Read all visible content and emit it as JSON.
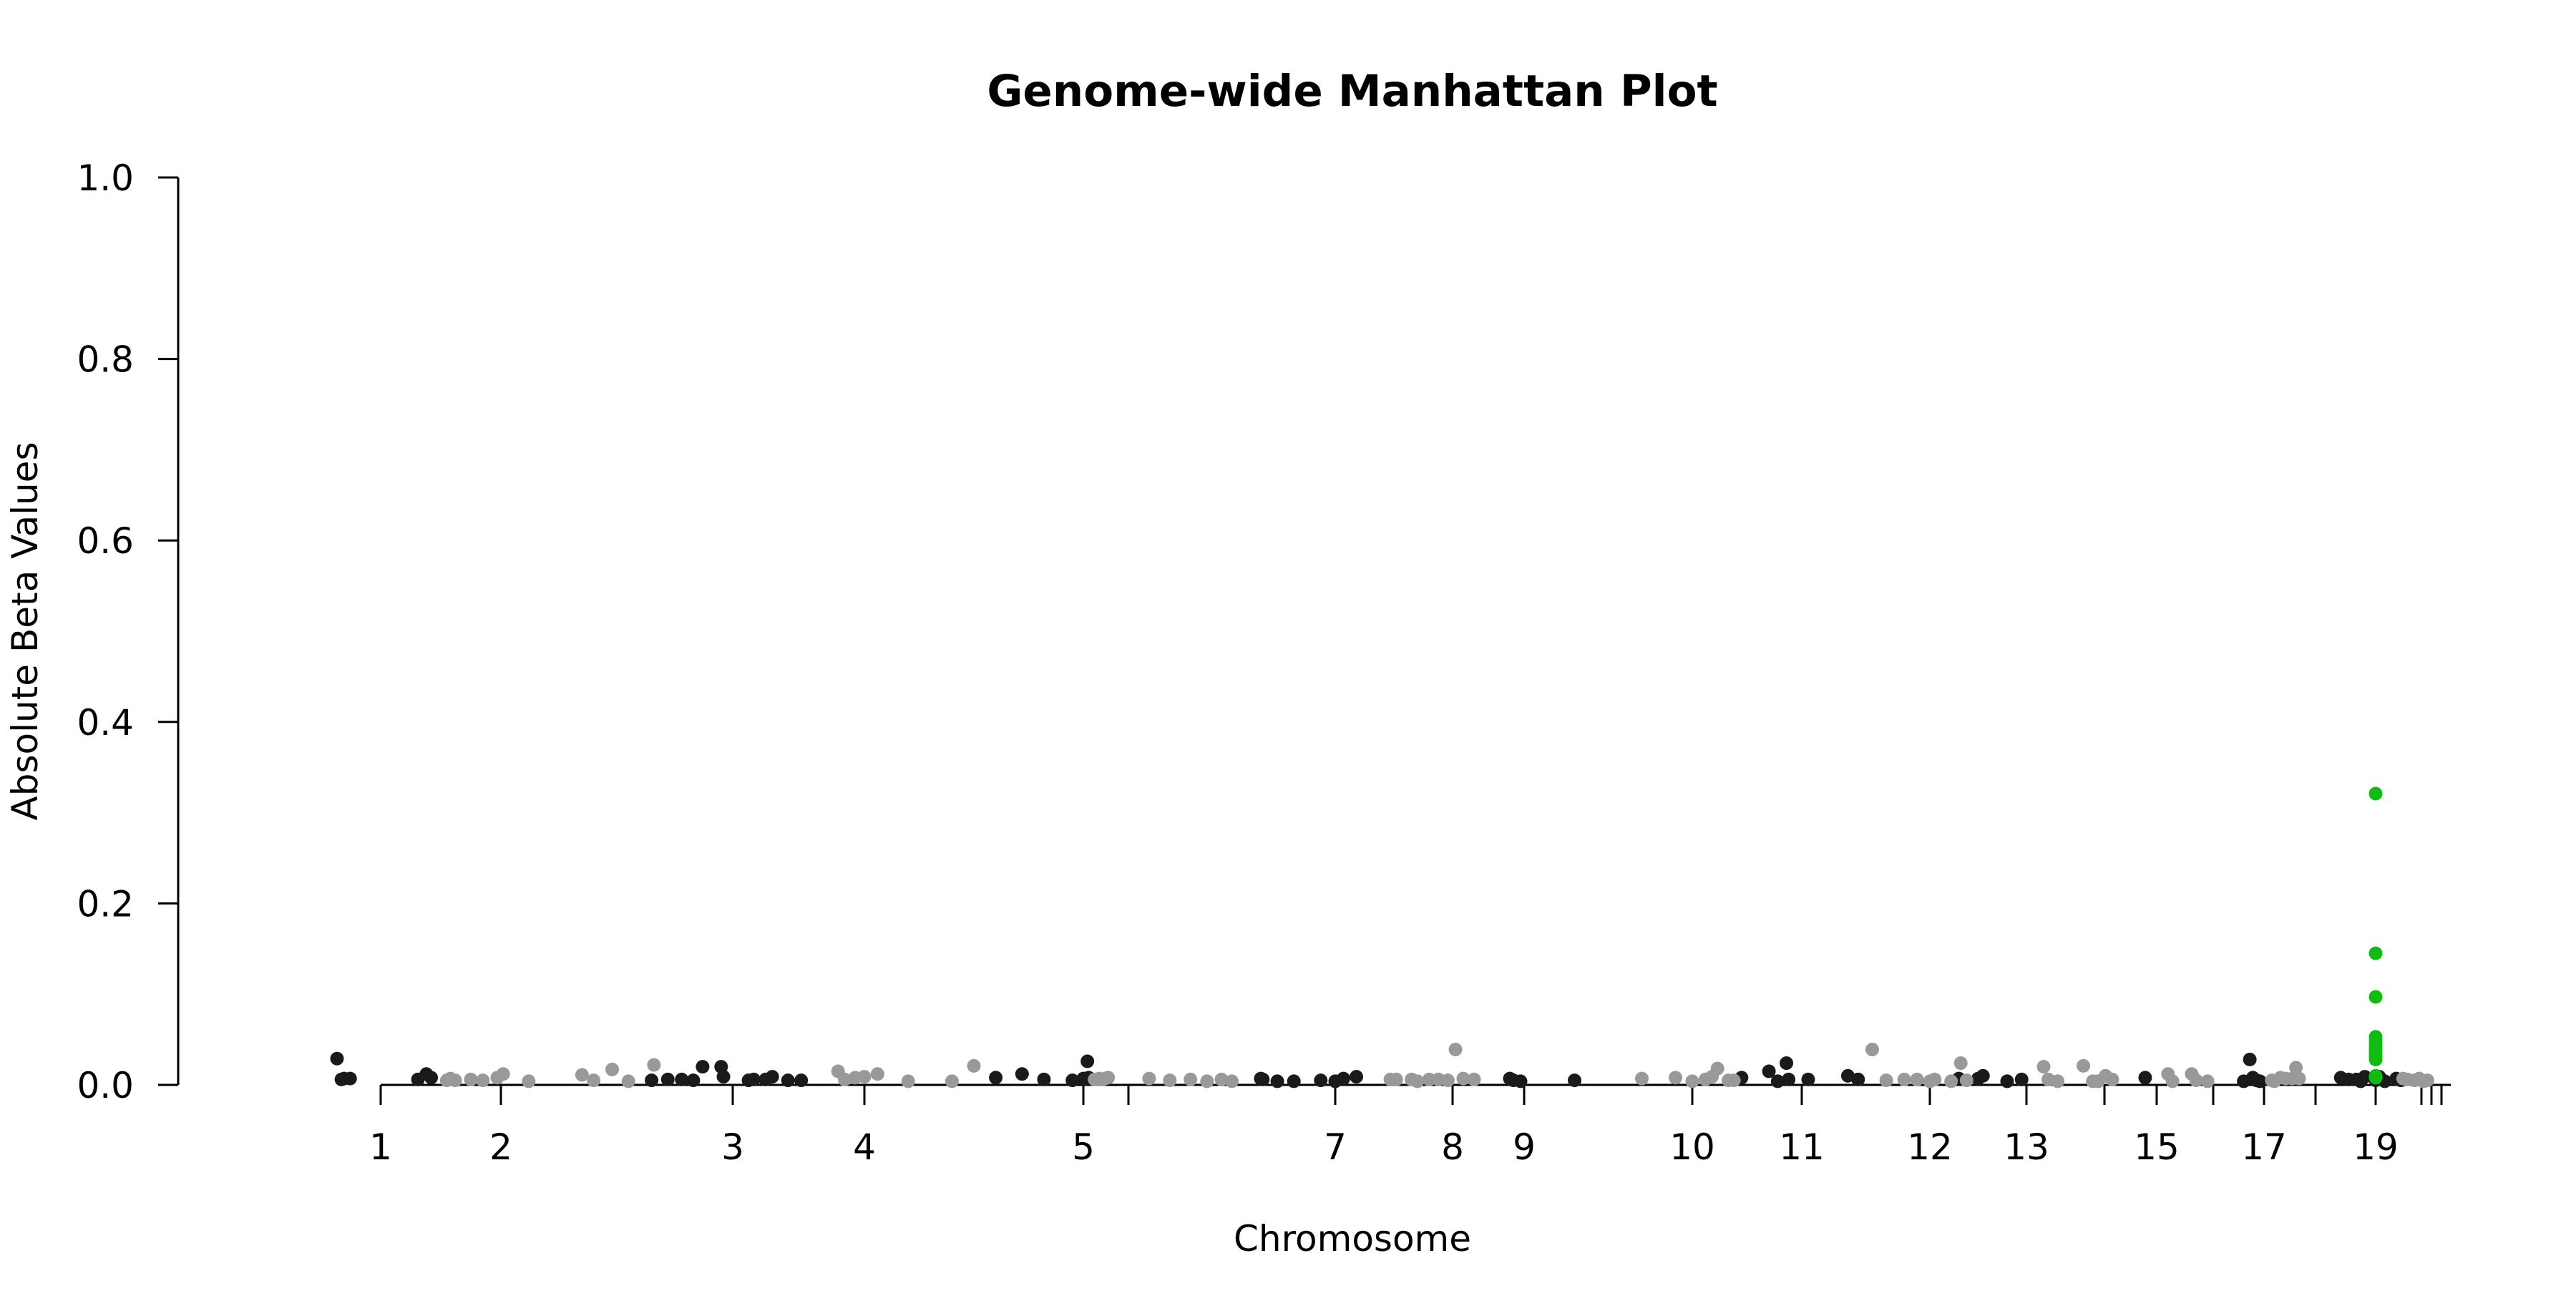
{
  "chart_data": {
    "type": "scatter",
    "title": "Genome-wide Manhattan Plot",
    "xlabel": "Chromosome",
    "ylabel": "Absolute Beta Values",
    "ylim": [
      0,
      1
    ],
    "yticks": [
      "0.0",
      "0.2",
      "0.4",
      "0.6",
      "0.8",
      "1.0"
    ],
    "xticks": [
      {
        "label": "1",
        "chrom": 1
      },
      {
        "label": "2",
        "chrom": 2
      },
      {
        "label": "",
        "chrom": 3,
        "tick_only": true
      },
      {
        "label": "3",
        "chrom": 3
      },
      {
        "label": "4",
        "chrom": 4
      },
      {
        "label": "5",
        "chrom": 5
      },
      {
        "label": "",
        "chrom": 6,
        "tick_only": true
      },
      {
        "label": "7",
        "chrom": 7
      },
      {
        "label": "8",
        "chrom": 8
      },
      {
        "label": "9",
        "chrom": 9
      },
      {
        "label": "10",
        "chrom": 10
      },
      {
        "label": "11",
        "chrom": 11
      },
      {
        "label": "12",
        "chrom": 12
      },
      {
        "label": "13",
        "chrom": 13
      },
      {
        "label": "",
        "chrom": 14,
        "tick_only": true
      },
      {
        "label": "15",
        "chrom": 15
      },
      {
        "label": "",
        "chrom": 16,
        "tick_only": true
      },
      {
        "label": "17",
        "chrom": 17
      },
      {
        "label": "",
        "chrom": 18,
        "tick_only": true
      },
      {
        "label": "19",
        "chrom": 19
      },
      {
        "label": "",
        "chrom": 20,
        "tick_only": true
      },
      {
        "label": "",
        "chrom": 21,
        "tick_only": true
      },
      {
        "label": "",
        "chrom": 22,
        "tick_only": true
      }
    ],
    "grid": false,
    "colors": {
      "odd_chromosome": "#1a1a1a",
      "even_chromosome": "#999999",
      "highlight": "#11bb11"
    },
    "series": [
      {
        "color_key": "odd_chromosome",
        "values": [
          [
            0.5,
            0.029
          ],
          [
            0.55,
            0.006
          ],
          [
            0.58,
            0.007
          ],
          [
            0.65,
            0.007
          ],
          [
            1.31,
            0.006
          ],
          [
            1.38,
            0.012
          ],
          [
            1.42,
            0.008
          ],
          [
            2.65,
            0.005
          ],
          [
            2.72,
            0.006
          ],
          [
            2.78,
            0.006
          ],
          [
            2.83,
            0.005
          ],
          [
            2.87,
            0.02
          ],
          [
            2.95,
            0.02
          ],
          [
            2.96,
            0.009
          ],
          [
            3.12,
            0.005
          ],
          [
            3.16,
            0.006
          ],
          [
            3.25,
            0.006
          ],
          [
            3.3,
            0.009
          ],
          [
            3.42,
            0.005
          ],
          [
            3.52,
            0.005
          ],
          [
            4.6,
            0.008
          ],
          [
            4.72,
            0.012
          ],
          [
            4.82,
            0.006
          ],
          [
            4.95,
            0.005
          ],
          [
            5.0,
            0.007
          ],
          [
            5.05,
            0.007
          ],
          [
            5.09,
            0.026
          ],
          [
            5.12,
            0.008
          ],
          [
            6.64,
            0.007
          ],
          [
            6.65,
            0.006
          ],
          [
            6.72,
            0.004
          ],
          [
            6.8,
            0.004
          ],
          [
            6.93,
            0.005
          ],
          [
            7.0,
            0.004
          ],
          [
            7.07,
            0.007
          ],
          [
            7.18,
            0.009
          ],
          [
            8.8,
            0.007
          ],
          [
            8.85,
            0.005
          ],
          [
            8.95,
            0.004
          ],
          [
            9.3,
            0.005
          ],
          [
            10.45,
            0.008
          ],
          [
            10.7,
            0.015
          ],
          [
            10.78,
            0.004
          ],
          [
            10.86,
            0.024
          ],
          [
            10.88,
            0.006
          ],
          [
            11.05,
            0.006
          ],
          [
            11.36,
            0.01
          ],
          [
            11.44,
            0.006
          ],
          [
            12.3,
            0.007
          ],
          [
            12.5,
            0.007
          ],
          [
            12.55,
            0.01
          ],
          [
            12.8,
            0.004
          ],
          [
            12.95,
            0.006
          ],
          [
            14.78,
            0.008
          ],
          [
            16.6,
            0.004
          ],
          [
            16.72,
            0.028
          ],
          [
            16.78,
            0.008
          ],
          [
            16.85,
            0.005
          ],
          [
            16.92,
            0.004
          ],
          [
            18.42,
            0.008
          ],
          [
            18.55,
            0.006
          ],
          [
            18.68,
            0.006
          ],
          [
            18.75,
            0.004
          ],
          [
            18.82,
            0.009
          ],
          [
            19.0,
            0.005
          ],
          [
            19.08,
            0.009
          ],
          [
            19.2,
            0.004
          ],
          [
            19.45,
            0.007
          ],
          [
            19.55,
            0.005
          ]
        ]
      },
      {
        "color_key": "even_chromosome",
        "values": [
          [
            1.55,
            0.005
          ],
          [
            1.58,
            0.007
          ],
          [
            1.62,
            0.005
          ],
          [
            1.75,
            0.006
          ],
          [
            1.85,
            0.005
          ],
          [
            1.97,
            0.008
          ],
          [
            2.01,
            0.012
          ],
          [
            2.12,
            0.004
          ],
          [
            2.35,
            0.011
          ],
          [
            2.4,
            0.005
          ],
          [
            2.48,
            0.017
          ],
          [
            2.55,
            0.004
          ],
          [
            2.66,
            0.022
          ],
          [
            3.8,
            0.015
          ],
          [
            3.85,
            0.006
          ],
          [
            3.93,
            0.008
          ],
          [
            4.0,
            0.009
          ],
          [
            4.06,
            0.012
          ],
          [
            4.2,
            0.004
          ],
          [
            4.4,
            0.004
          ],
          [
            4.5,
            0.021
          ],
          [
            5.25,
            0.006
          ],
          [
            5.3,
            0.006
          ],
          [
            5.35,
            0.007
          ],
          [
            5.42,
            0.006
          ],
          [
            5.48,
            0.007
          ],
          [
            5.55,
            0.008
          ],
          [
            6.1,
            0.007
          ],
          [
            6.2,
            0.005
          ],
          [
            6.3,
            0.006
          ],
          [
            6.38,
            0.004
          ],
          [
            6.45,
            0.006
          ],
          [
            6.5,
            0.004
          ],
          [
            7.47,
            0.006
          ],
          [
            7.52,
            0.006
          ],
          [
            7.65,
            0.006
          ],
          [
            7.7,
            0.004
          ],
          [
            7.8,
            0.006
          ],
          [
            7.88,
            0.006
          ],
          [
            7.96,
            0.005
          ],
          [
            8.04,
            0.039
          ],
          [
            8.15,
            0.007
          ],
          [
            8.3,
            0.006
          ],
          [
            9.7,
            0.007
          ],
          [
            9.9,
            0.008
          ],
          [
            10.0,
            0.004
          ],
          [
            10.12,
            0.006
          ],
          [
            10.18,
            0.009
          ],
          [
            10.23,
            0.018
          ],
          [
            10.33,
            0.005
          ],
          [
            10.38,
            0.005
          ],
          [
            11.55,
            0.039
          ],
          [
            11.66,
            0.005
          ],
          [
            11.8,
            0.006
          ],
          [
            11.9,
            0.006
          ],
          [
            12.0,
            0.004
          ],
          [
            12.05,
            0.006
          ],
          [
            12.22,
            0.004
          ],
          [
            12.32,
            0.024
          ],
          [
            12.38,
            0.005
          ],
          [
            13.22,
            0.02
          ],
          [
            13.28,
            0.006
          ],
          [
            13.4,
            0.004
          ],
          [
            13.73,
            0.021
          ],
          [
            13.85,
            0.004
          ],
          [
            13.92,
            0.004
          ],
          [
            14.02,
            0.01
          ],
          [
            14.15,
            0.006
          ],
          [
            15.2,
            0.012
          ],
          [
            15.28,
            0.004
          ],
          [
            15.62,
            0.012
          ],
          [
            15.7,
            0.005
          ],
          [
            15.9,
            0.004
          ],
          [
            17.15,
            0.005
          ],
          [
            17.2,
            0.004
          ],
          [
            17.32,
            0.008
          ],
          [
            17.42,
            0.007
          ],
          [
            17.55,
            0.007
          ],
          [
            17.62,
            0.019
          ],
          [
            17.68,
            0.007
          ],
          [
            19.6,
            0.007
          ],
          [
            19.7,
            0.006
          ],
          [
            19.85,
            0.005
          ],
          [
            19.95,
            0.007
          ],
          [
            20.2,
            0.004
          ],
          [
            20.6,
            0.005
          ]
        ]
      },
      {
        "color_key": "highlight",
        "values": [
          [
            19.0,
            0.321
          ],
          [
            19.0,
            0.145
          ],
          [
            19.0,
            0.097
          ],
          [
            19.0,
            0.053
          ],
          [
            19.0,
            0.049
          ],
          [
            19.0,
            0.045
          ],
          [
            19.0,
            0.041
          ],
          [
            19.0,
            0.038
          ],
          [
            19.0,
            0.034
          ],
          [
            19.0,
            0.031
          ],
          [
            19.0,
            0.028
          ],
          [
            19.0,
            0.01
          ],
          [
            19.0,
            0.008
          ]
        ]
      }
    ]
  }
}
